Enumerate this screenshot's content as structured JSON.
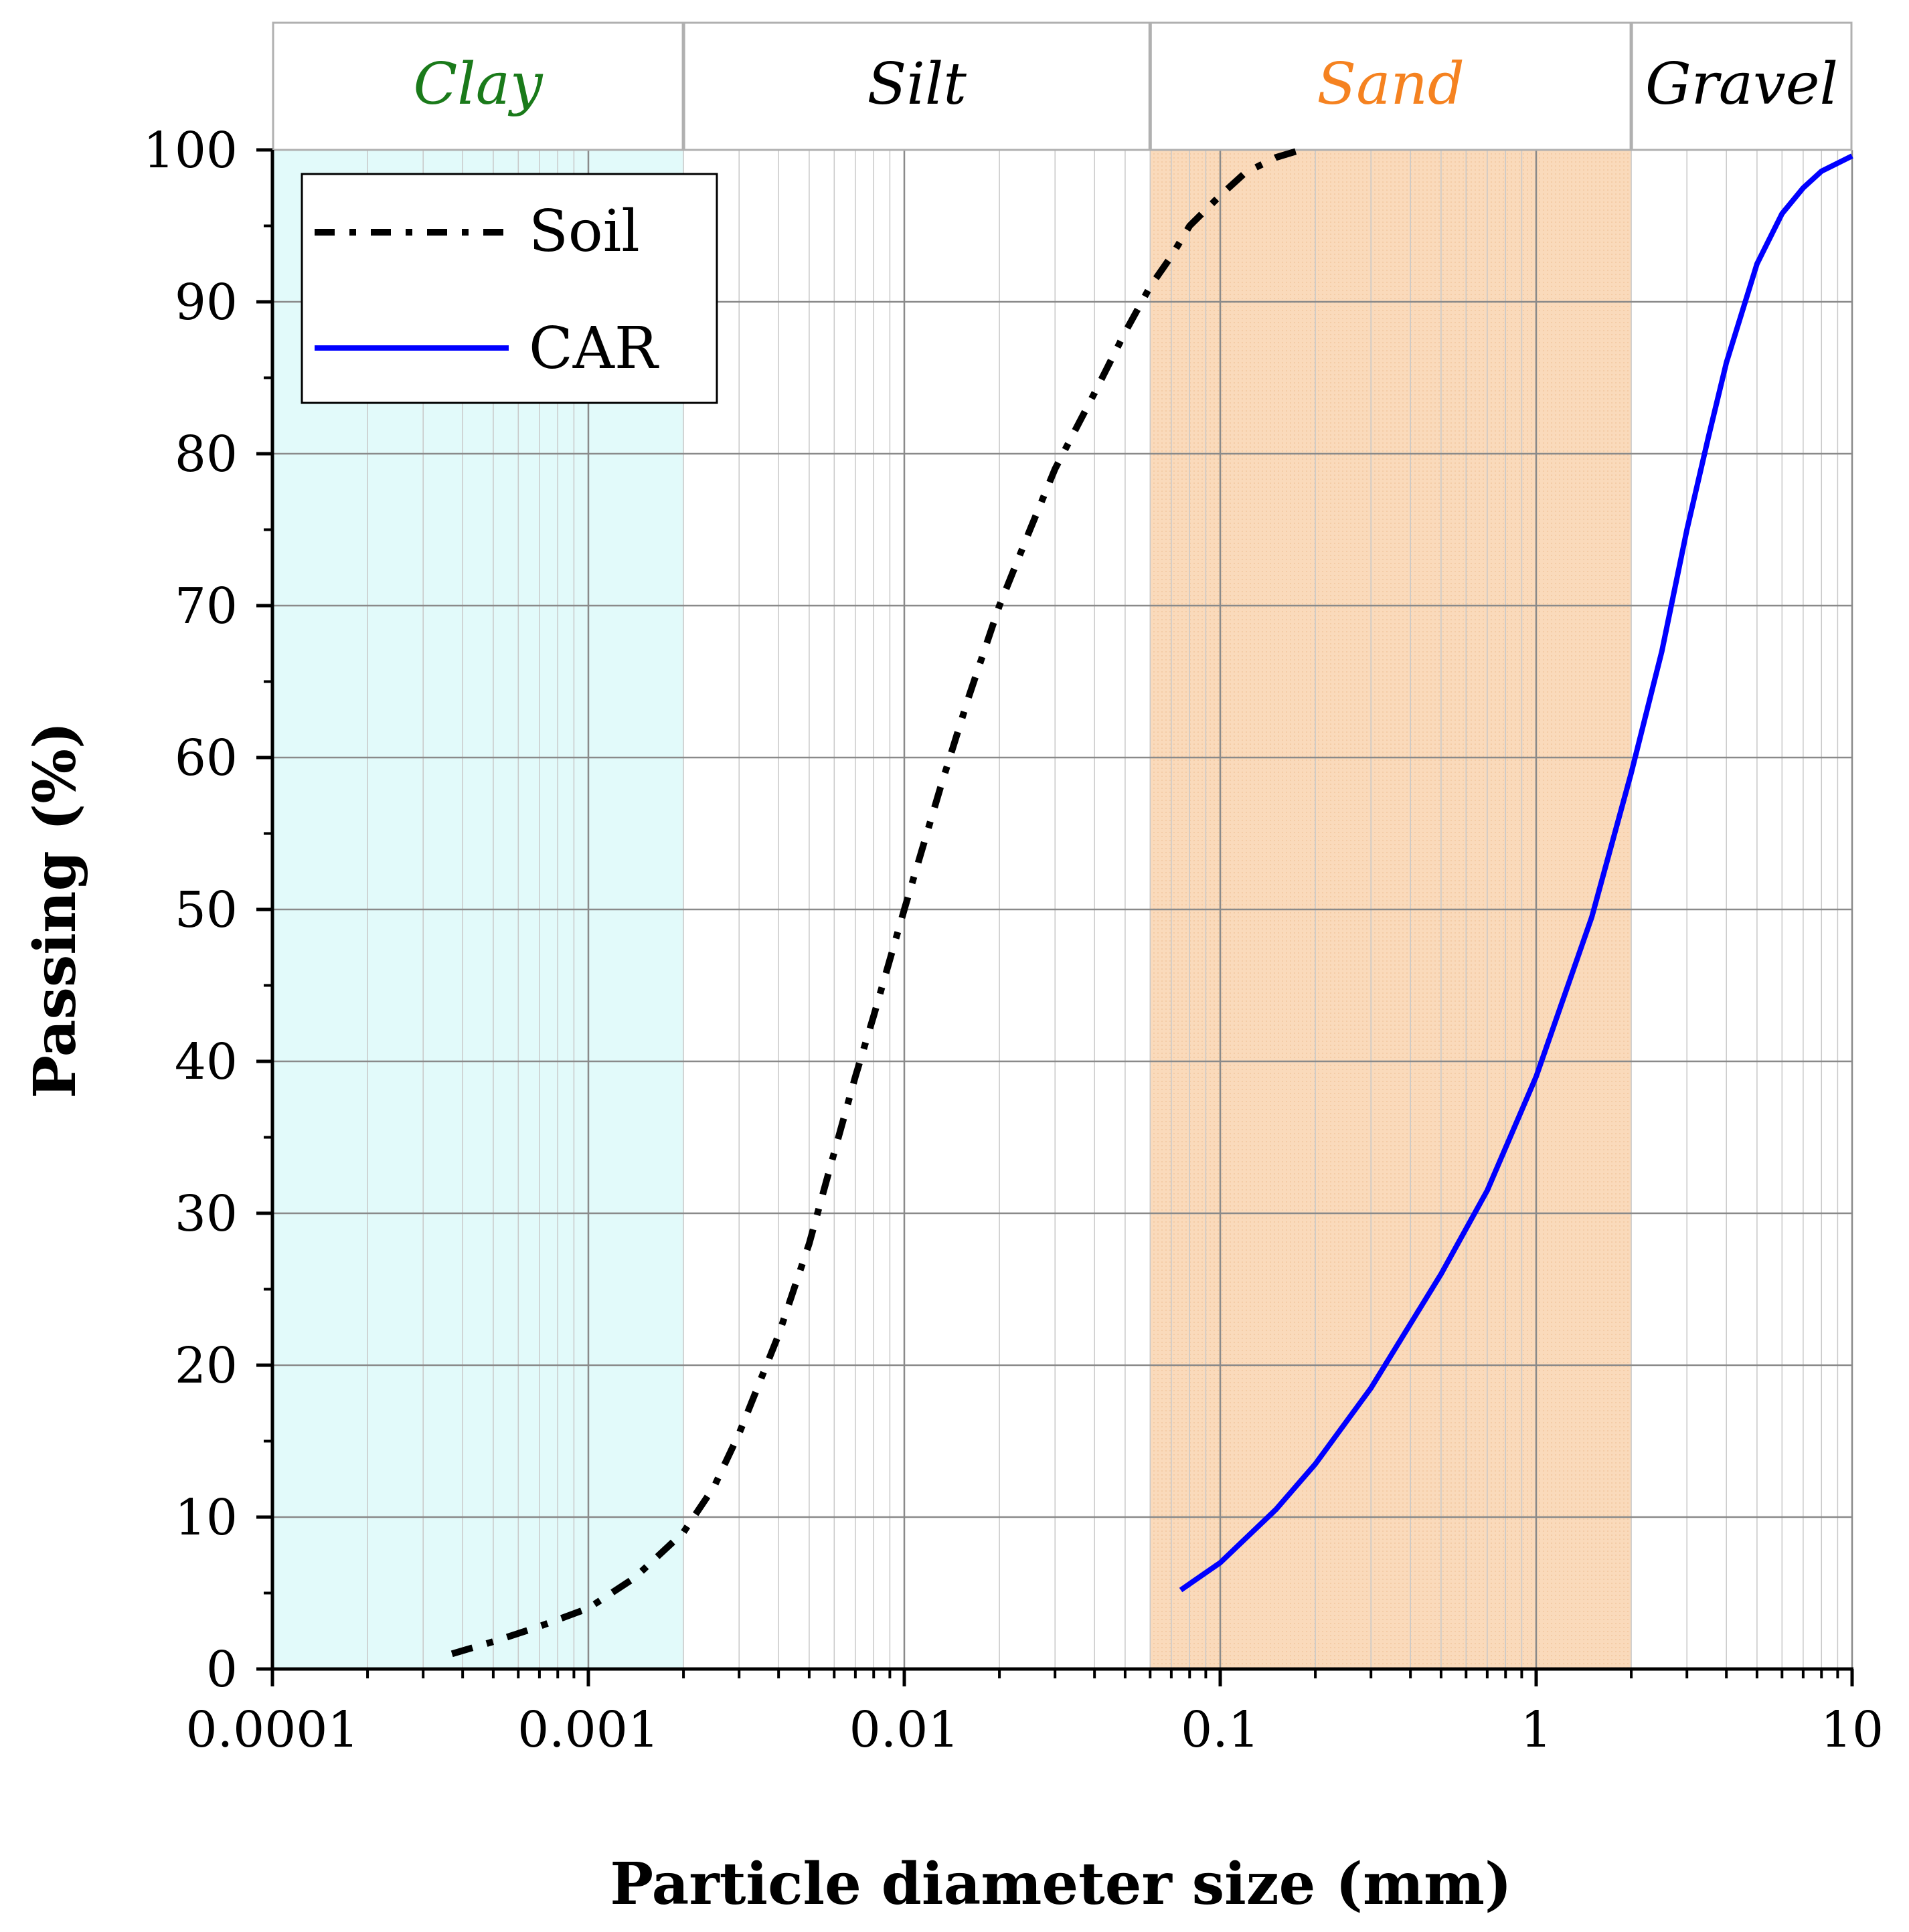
{
  "chart_data": {
    "type": "line",
    "title": "",
    "xlabel": "Particle diameter size (mm)",
    "ylabel": "Passing (%)",
    "xscale": "log",
    "xlim": [
      0.0001,
      10
    ],
    "ylim": [
      0,
      100
    ],
    "grid": true,
    "legend_position": "top-left",
    "x_ticks": [
      {
        "value": 0.0001,
        "label": "0.0001"
      },
      {
        "value": 0.001,
        "label": "0.001"
      },
      {
        "value": 0.01,
        "label": "0.01"
      },
      {
        "value": 0.1,
        "label": "0.1"
      },
      {
        "value": 1,
        "label": "1"
      },
      {
        "value": 10,
        "label": "10"
      }
    ],
    "y_ticks": [
      {
        "value": 0,
        "label": "0"
      },
      {
        "value": 10,
        "label": "10"
      },
      {
        "value": 20,
        "label": "20"
      },
      {
        "value": 30,
        "label": "30"
      },
      {
        "value": 40,
        "label": "40"
      },
      {
        "value": 50,
        "label": "50"
      },
      {
        "value": 60,
        "label": "60"
      },
      {
        "value": 70,
        "label": "70"
      },
      {
        "value": 80,
        "label": "80"
      },
      {
        "value": 90,
        "label": "90"
      },
      {
        "value": 100,
        "label": "100"
      }
    ],
    "bands": [
      {
        "name": "Clay",
        "from": 0.0001,
        "to": 0.002,
        "label_color": "#1a7a1a",
        "fill": "#dffafa"
      },
      {
        "name": "Silt",
        "from": 0.002,
        "to": 0.06,
        "label_color": "#000000",
        "fill": "none"
      },
      {
        "name": "Sand",
        "from": 0.06,
        "to": 2,
        "label_color": "#f58220",
        "fill": "#f9d5b1"
      },
      {
        "name": "Gravel",
        "from": 2,
        "to": 10,
        "label_color": "#000000",
        "fill": "none"
      }
    ],
    "series": [
      {
        "name": "Soil",
        "style": "dash-dot",
        "color": "#000000",
        "x": [
          0.00037,
          0.0005,
          0.0007,
          0.001,
          0.0014,
          0.002,
          0.0025,
          0.003,
          0.004,
          0.005,
          0.006,
          0.007,
          0.008,
          0.01,
          0.013,
          0.016,
          0.02,
          0.025,
          0.03,
          0.04,
          0.05,
          0.06,
          0.07,
          0.08,
          0.1,
          0.12,
          0.15,
          0.18
        ],
        "y": [
          1,
          1.8,
          2.8,
          4,
          6,
          9,
          12,
          15.5,
          22,
          28,
          34,
          39,
          43,
          50,
          58,
          64,
          70,
          75,
          79,
          84,
          88,
          91,
          93,
          95,
          97,
          98.5,
          99.5,
          100
        ]
      },
      {
        "name": "CAR",
        "style": "solid",
        "color": "#0000ff",
        "x": [
          0.075,
          0.1,
          0.15,
          0.2,
          0.3,
          0.5,
          0.7,
          1,
          1.5,
          2,
          2.5,
          3,
          3.5,
          4,
          5,
          6,
          7,
          8,
          10
        ],
        "y": [
          5.2,
          7,
          10.5,
          13.5,
          18.5,
          26,
          31.5,
          39,
          49.5,
          59,
          67,
          75,
          81,
          86,
          92.5,
          95.8,
          97.5,
          98.6,
          99.6
        ]
      }
    ]
  }
}
